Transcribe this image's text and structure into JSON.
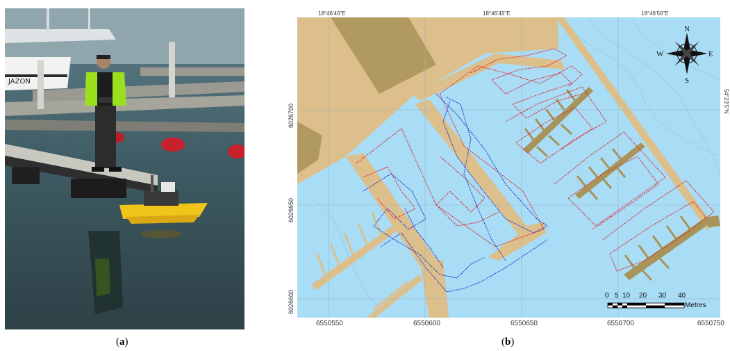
{
  "captions": {
    "a": "a",
    "b": "b"
  },
  "photo": {
    "boat_name": "JAZON"
  },
  "map": {
    "top_longitudes": [
      "18°46'40\"E",
      "18°46'45\"E",
      "18°46'50\"E"
    ],
    "right_latitude": "54°23'5\"N",
    "eastings": [
      "6550550",
      "6550600",
      "6550650",
      "6550700",
      "6550750"
    ],
    "northings": [
      "6026700",
      "6026650",
      "6026600"
    ],
    "compass": {
      "n": "N",
      "s": "S",
      "e": "E",
      "w": "W"
    },
    "scale_bar": {
      "ticks": [
        "0",
        "5",
        "10",
        "20",
        "30",
        "40"
      ],
      "unit": "Metres"
    },
    "colors": {
      "water": "#a9dcf5",
      "land": "#ddbf8c",
      "pier": "#a89358",
      "building": "#b09a60",
      "track_red": "#e0202a",
      "track_blue": "#1a2fc8"
    }
  }
}
